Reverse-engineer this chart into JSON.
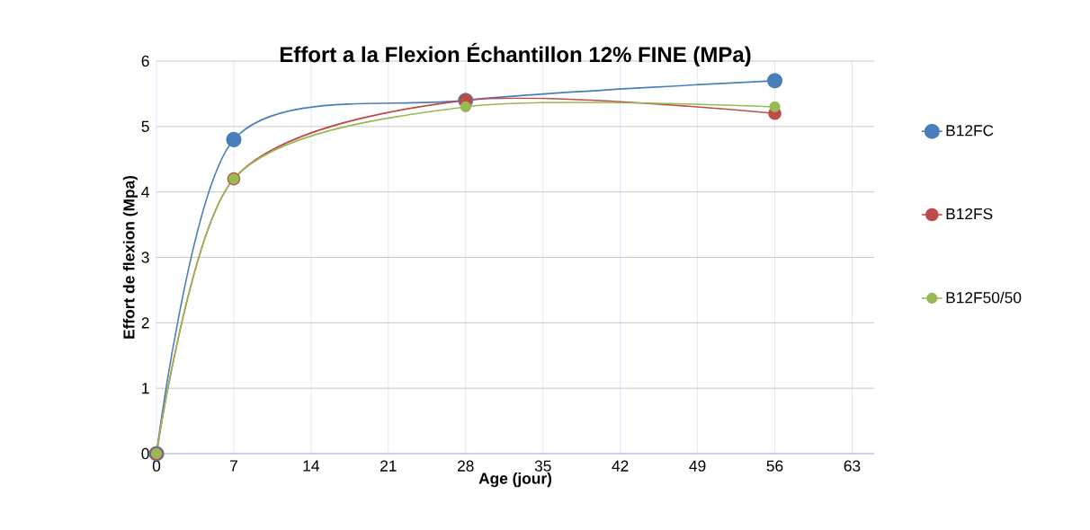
{
  "chart_data": {
    "type": "line",
    "title": "Effort a la Flexion Échantillon  12% FINE   (MPa)",
    "xlabel": "Age (jour)",
    "ylabel": "Effort de  flexion (Mpa)",
    "x": [
      0,
      7,
      28,
      56
    ],
    "series": [
      {
        "name": "B12FC",
        "color": "#4a7ebb",
        "values": [
          0,
          4.8,
          5.4,
          5.7
        ]
      },
      {
        "name": "B12FS",
        "color": "#be4b48",
        "values": [
          0,
          4.2,
          5.4,
          5.2
        ]
      },
      {
        "name": "B12F50/50",
        "color": "#98b954",
        "values": [
          0,
          4.2,
          5.3,
          5.3
        ]
      }
    ],
    "xlim": [
      0,
      65
    ],
    "xticks": [
      0,
      7,
      14,
      21,
      28,
      35,
      42,
      49,
      56,
      63
    ],
    "ylim": [
      0,
      6
    ],
    "yticks": [
      0,
      1,
      2,
      3,
      4,
      5,
      6
    ],
    "grid": true,
    "legend": "right",
    "marker": "circle",
    "line_style": "solid"
  }
}
